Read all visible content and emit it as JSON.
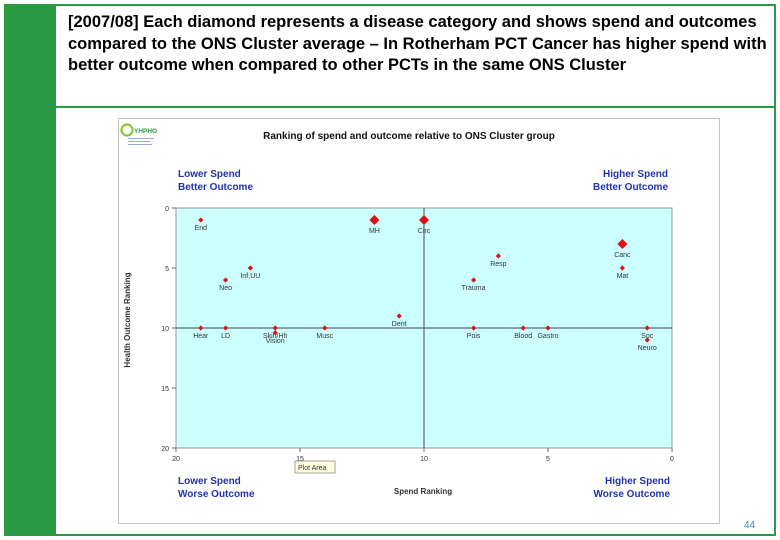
{
  "slide": {
    "heading": "[2007/08] Each diamond represents a disease category and shows spend and outcomes compared to the ONS Cluster average – In Rotherham PCT Cancer has higher spend with better outcome when compared to other PCTs in the same ONS Cluster",
    "page_number": "44",
    "accent_color": "#2a9a45"
  },
  "logo": {
    "text": "YHPHO",
    "icon": "yhpho-logo-icon"
  },
  "chart_data": {
    "type": "scatter",
    "title": "Ranking of spend and outcome relative to ONS Cluster group",
    "xlabel": "Spend Ranking",
    "ylabel": "Health Outcome Ranking",
    "xlim": [
      20,
      0
    ],
    "ylim": [
      0,
      20
    ],
    "x_ticks": [
      "20",
      "15",
      "10",
      "5",
      "0"
    ],
    "y_ticks": [
      "0",
      "5",
      "10",
      "15",
      "20"
    ],
    "x_tick_values": [
      20,
      15,
      10,
      5,
      0
    ],
    "y_tick_values": [
      0,
      5,
      10,
      15,
      20
    ],
    "average": [
      10,
      10
    ],
    "plot_area_label": "Plot Area",
    "quadrants": {
      "top_left": [
        "Lower Spend",
        "Better Outcome"
      ],
      "top_right": [
        "Higher Spend",
        "Better Outcome"
      ],
      "bottom_left": [
        "Lower Spend",
        "Worse Outcome"
      ],
      "bottom_right": [
        "Higher Spend",
        "Worse Outcome"
      ]
    },
    "points": [
      {
        "label": "End",
        "x": 19,
        "y": 1,
        "highlight": false
      },
      {
        "label": "MH",
        "x": 12,
        "y": 1,
        "highlight": true
      },
      {
        "label": "Circ",
        "x": 10,
        "y": 1,
        "highlight": true
      },
      {
        "label": "Canc",
        "x": 2,
        "y": 3,
        "highlight": true
      },
      {
        "label": "Resp",
        "x": 7,
        "y": 4,
        "highlight": false
      },
      {
        "label": "Mat",
        "x": 2,
        "y": 5,
        "highlight": false
      },
      {
        "label": "Inf,UU",
        "x": 17,
        "y": 5,
        "highlight": false
      },
      {
        "label": "Neo",
        "x": 18,
        "y": 6,
        "highlight": false
      },
      {
        "label": "Trauma",
        "x": 8,
        "y": 6,
        "highlight": false
      },
      {
        "label": "Dent",
        "x": 11,
        "y": 9,
        "highlight": false
      },
      {
        "label": "Hear",
        "x": 19,
        "y": 10,
        "highlight": false
      },
      {
        "label": "LD",
        "x": 18,
        "y": 10,
        "highlight": false
      },
      {
        "label": "Skin/Hh",
        "x": 16,
        "y": 10,
        "highlight": false
      },
      {
        "label": "Vision",
        "x": 16,
        "y": 10.4,
        "highlight": false
      },
      {
        "label": "Musc",
        "x": 14,
        "y": 10,
        "highlight": false
      },
      {
        "label": "Pois",
        "x": 8,
        "y": 10,
        "highlight": false
      },
      {
        "label": "Blood",
        "x": 6,
        "y": 10,
        "highlight": false
      },
      {
        "label": "Gastro",
        "x": 5,
        "y": 10,
        "highlight": false
      },
      {
        "label": "Soc",
        "x": 1,
        "y": 10,
        "highlight": false
      },
      {
        "label": "Neuro",
        "x": 1,
        "y": 11,
        "highlight": false
      }
    ],
    "colors": {
      "point": "#dd1111",
      "plot_bg": "#ccffff",
      "quadrant_text": "#2233aa"
    }
  }
}
